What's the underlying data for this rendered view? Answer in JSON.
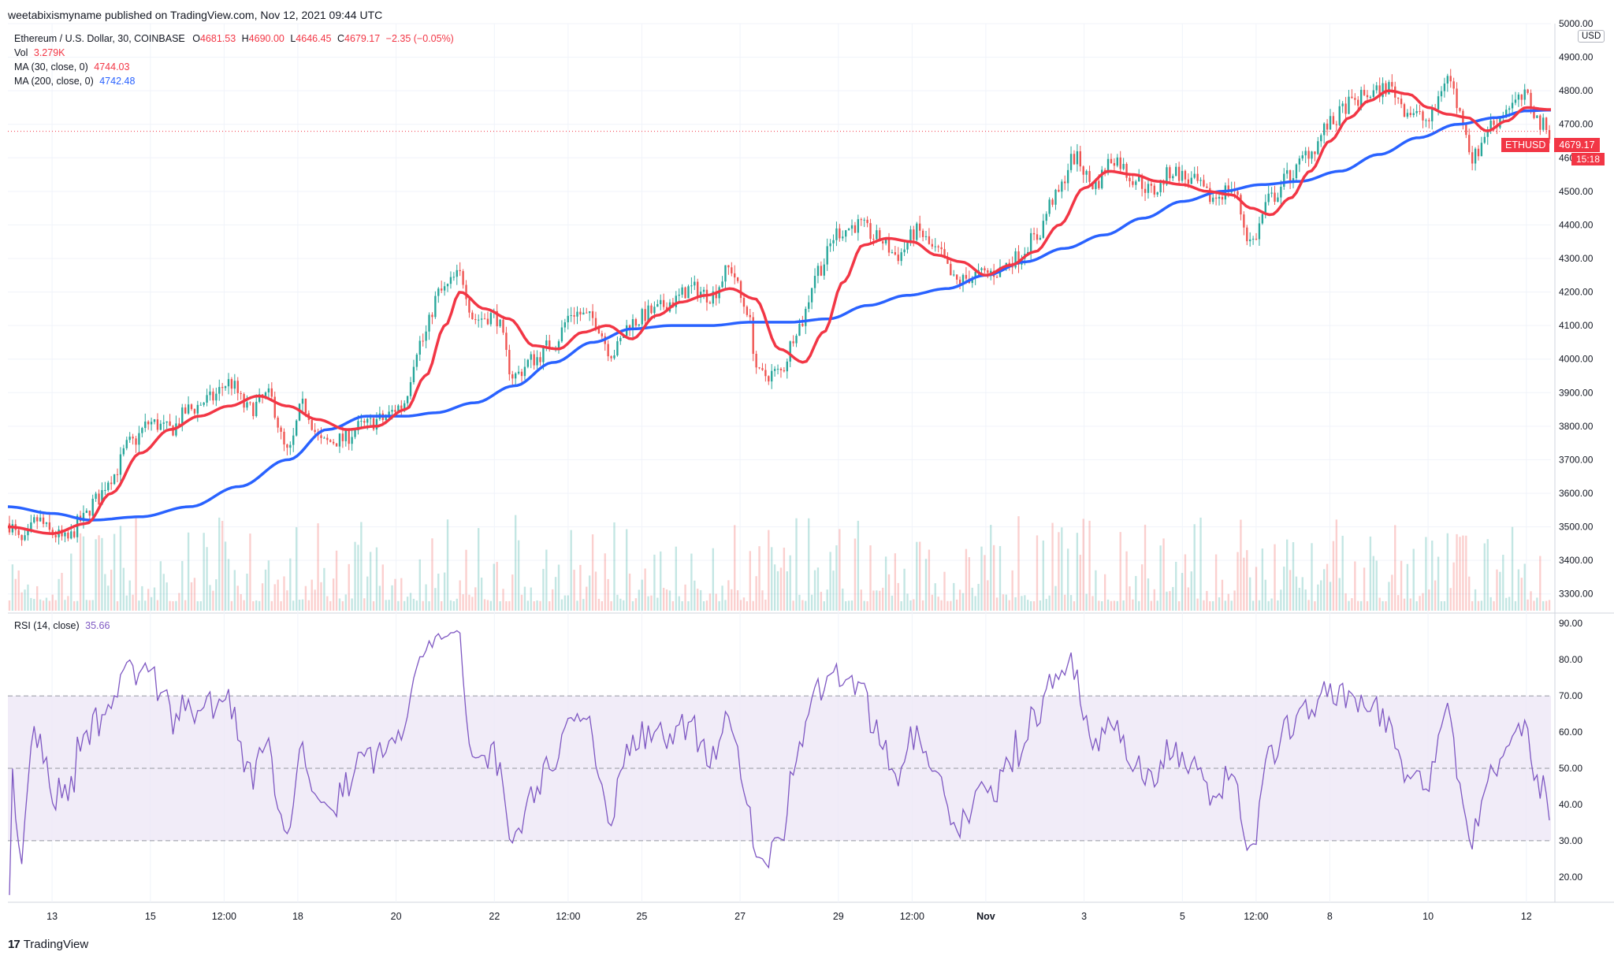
{
  "header": {
    "published": "weetabixismyname published on TradingView.com, Nov 12, 2021 09:44 UTC"
  },
  "legend": {
    "symbol": "Ethereum / U.S. Dollar, 30, COINBASE",
    "ohlc": {
      "o_label": "O",
      "o": "4681.53",
      "h_label": "H",
      "h": "4690.00",
      "l_label": "L",
      "l": "4646.45",
      "c_label": "C",
      "c": "4679.17",
      "change": "−2.35 (−0.05%)"
    },
    "vol_label": "Vol",
    "vol": "3.279K",
    "ma30_label": "MA (30, close, 0)",
    "ma30": "4744.03",
    "ma200_label": "MA (200, close, 0)",
    "ma200": "4742.48"
  },
  "rsi_legend": {
    "label": "RSI (14, close)",
    "value": "35.66"
  },
  "price_tag": {
    "symbol": "ETHUSD",
    "value": "4679.17",
    "countdown": "15:18"
  },
  "currency": "USD",
  "branding": {
    "mark": "17",
    "name": "TradingView"
  },
  "colors": {
    "up": "#26a69a",
    "down": "#ef5350",
    "ma30": "#f23645",
    "ma200": "#2962ff",
    "rsi": "#7e57c2",
    "rsi_band": "#ede7f6",
    "grid": "#f0f3fa"
  },
  "chart_data": [
    {
      "type": "candlestick",
      "title": "Ethereum / U.S. Dollar, 30, COINBASE",
      "ylim": [
        3250,
        5000
      ],
      "y_ticks": [
        "3300.00",
        "3400.00",
        "3500.00",
        "3600.00",
        "3700.00",
        "3800.00",
        "3900.00",
        "4000.00",
        "4100.00",
        "4200.00",
        "4300.00",
        "4400.00",
        "4500.00",
        "4600.00",
        "4700.00",
        "4800.00",
        "4900.00",
        "5000.00"
      ],
      "x_ticks": [
        "13",
        "15",
        "12:00",
        "18",
        "20",
        "22",
        "12:00",
        "25",
        "27",
        "29",
        "12:00",
        "Nov",
        "3",
        "5",
        "12:00",
        "8",
        "10",
        "12"
      ],
      "x_tick_days": [
        13.0,
        15.0,
        16.5,
        18.0,
        20.0,
        22.0,
        23.5,
        25.0,
        27.0,
        29.0,
        30.5,
        32.0,
        34.0,
        36.0,
        37.5,
        39.0,
        41.0,
        43.0
      ],
      "x_range_days": [
        12.1,
        43.5
      ],
      "last_close": 4679.17,
      "price_anchors": [
        [
          12.1,
          3510
        ],
        [
          12.4,
          3450
        ],
        [
          12.7,
          3520
        ],
        [
          13.0,
          3480
        ],
        [
          13.3,
          3460
        ],
        [
          13.6,
          3520
        ],
        [
          13.9,
          3580
        ],
        [
          14.2,
          3650
        ],
        [
          14.6,
          3750
        ],
        [
          15.0,
          3810
        ],
        [
          15.4,
          3790
        ],
        [
          15.8,
          3850
        ],
        [
          16.2,
          3880
        ],
        [
          16.6,
          3930
        ],
        [
          17.0,
          3850
        ],
        [
          17.4,
          3890
        ],
        [
          17.8,
          3720
        ],
        [
          18.1,
          3860
        ],
        [
          18.5,
          3750
        ],
        [
          18.9,
          3760
        ],
        [
          19.3,
          3800
        ],
        [
          19.7,
          3820
        ],
        [
          20.1,
          3860
        ],
        [
          20.5,
          4050
        ],
        [
          20.9,
          4200
        ],
        [
          21.3,
          4250
        ],
        [
          21.6,
          4120
        ],
        [
          22.0,
          4130
        ],
        [
          22.4,
          3950
        ],
        [
          22.8,
          4000
        ],
        [
          23.2,
          4050
        ],
        [
          23.6,
          4140
        ],
        [
          24.0,
          4120
        ],
        [
          24.4,
          4020
        ],
        [
          24.8,
          4110
        ],
        [
          25.2,
          4140
        ],
        [
          25.6,
          4170
        ],
        [
          26.0,
          4210
        ],
        [
          26.4,
          4190
        ],
        [
          26.8,
          4270
        ],
        [
          27.1,
          4160
        ],
        [
          27.4,
          3950
        ],
        [
          27.8,
          3960
        ],
        [
          28.2,
          4100
        ],
        [
          28.6,
          4270
        ],
        [
          29.0,
          4380
        ],
        [
          29.4,
          4400
        ],
        [
          29.8,
          4360
        ],
        [
          30.2,
          4310
        ],
        [
          30.6,
          4380
        ],
        [
          31.0,
          4320
        ],
        [
          31.4,
          4230
        ],
        [
          31.8,
          4250
        ],
        [
          32.2,
          4260
        ],
        [
          32.6,
          4300
        ],
        [
          33.0,
          4360
        ],
        [
          33.4,
          4480
        ],
        [
          33.8,
          4600
        ],
        [
          34.2,
          4520
        ],
        [
          34.6,
          4600
        ],
        [
          35.0,
          4540
        ],
        [
          35.4,
          4500
        ],
        [
          35.8,
          4560
        ],
        [
          36.2,
          4530
        ],
        [
          36.6,
          4480
        ],
        [
          37.0,
          4510
        ],
        [
          37.4,
          4350
        ],
        [
          37.8,
          4480
        ],
        [
          38.2,
          4550
        ],
        [
          38.6,
          4620
        ],
        [
          39.0,
          4700
        ],
        [
          39.4,
          4760
        ],
        [
          39.8,
          4790
        ],
        [
          40.2,
          4810
        ],
        [
          40.6,
          4740
        ],
        [
          41.0,
          4710
        ],
        [
          41.4,
          4840
        ],
        [
          41.7,
          4720
        ],
        [
          41.9,
          4600
        ],
        [
          42.3,
          4700
        ],
        [
          42.7,
          4760
        ],
        [
          43.0,
          4780
        ],
        [
          43.3,
          4700
        ],
        [
          43.45,
          4679
        ]
      ],
      "ma30_anchors": [
        [
          12.1,
          3500
        ],
        [
          13.0,
          3480
        ],
        [
          13.7,
          3510
        ],
        [
          14.2,
          3600
        ],
        [
          14.8,
          3720
        ],
        [
          15.4,
          3790
        ],
        [
          16.0,
          3830
        ],
        [
          16.6,
          3860
        ],
        [
          17.2,
          3890
        ],
        [
          17.8,
          3860
        ],
        [
          18.4,
          3820
        ],
        [
          19.0,
          3790
        ],
        [
          19.6,
          3800
        ],
        [
          20.2,
          3850
        ],
        [
          20.6,
          3950
        ],
        [
          21.0,
          4100
        ],
        [
          21.3,
          4200
        ],
        [
          21.8,
          4150
        ],
        [
          22.3,
          4120
        ],
        [
          22.8,
          4040
        ],
        [
          23.3,
          4030
        ],
        [
          23.8,
          4080
        ],
        [
          24.3,
          4100
        ],
        [
          24.8,
          4060
        ],
        [
          25.3,
          4130
        ],
        [
          25.8,
          4170
        ],
        [
          26.3,
          4190
        ],
        [
          26.8,
          4210
        ],
        [
          27.3,
          4180
        ],
        [
          27.8,
          4030
        ],
        [
          28.3,
          3990
        ],
        [
          28.7,
          4080
        ],
        [
          29.1,
          4230
        ],
        [
          29.5,
          4340
        ],
        [
          30.0,
          4360
        ],
        [
          30.5,
          4350
        ],
        [
          31.0,
          4310
        ],
        [
          31.5,
          4290
        ],
        [
          32.0,
          4250
        ],
        [
          32.5,
          4280
        ],
        [
          33.0,
          4320
        ],
        [
          33.5,
          4400
        ],
        [
          34.0,
          4510
        ],
        [
          34.5,
          4560
        ],
        [
          35.0,
          4550
        ],
        [
          35.5,
          4530
        ],
        [
          36.0,
          4520
        ],
        [
          36.5,
          4500
        ],
        [
          37.0,
          4490
        ],
        [
          37.4,
          4450
        ],
        [
          37.8,
          4430
        ],
        [
          38.2,
          4480
        ],
        [
          38.6,
          4560
        ],
        [
          39.0,
          4650
        ],
        [
          39.4,
          4720
        ],
        [
          39.8,
          4770
        ],
        [
          40.2,
          4800
        ],
        [
          40.6,
          4790
        ],
        [
          41.0,
          4750
        ],
        [
          41.4,
          4730
        ],
        [
          41.8,
          4720
        ],
        [
          42.2,
          4680
        ],
        [
          42.6,
          4710
        ],
        [
          43.0,
          4750
        ],
        [
          43.45,
          4744
        ]
      ],
      "ma200_anchors": [
        [
          12.1,
          3560
        ],
        [
          13.0,
          3540
        ],
        [
          13.8,
          3520
        ],
        [
          14.8,
          3530
        ],
        [
          15.8,
          3560
        ],
        [
          16.8,
          3620
        ],
        [
          17.8,
          3700
        ],
        [
          18.6,
          3790
        ],
        [
          19.4,
          3830
        ],
        [
          20.2,
          3830
        ],
        [
          20.8,
          3840
        ],
        [
          21.6,
          3870
        ],
        [
          22.4,
          3920
        ],
        [
          23.2,
          3990
        ],
        [
          24.0,
          4050
        ],
        [
          24.8,
          4090
        ],
        [
          25.6,
          4100
        ],
        [
          26.4,
          4100
        ],
        [
          27.2,
          4110
        ],
        [
          28.0,
          4110
        ],
        [
          28.8,
          4120
        ],
        [
          29.6,
          4160
        ],
        [
          30.4,
          4190
        ],
        [
          31.2,
          4210
        ],
        [
          32.0,
          4250
        ],
        [
          32.8,
          4290
        ],
        [
          33.6,
          4330
        ],
        [
          34.4,
          4370
        ],
        [
          35.2,
          4420
        ],
        [
          36.0,
          4470
        ],
        [
          36.8,
          4500
        ],
        [
          37.6,
          4520
        ],
        [
          38.4,
          4530
        ],
        [
          39.2,
          4560
        ],
        [
          40.0,
          4610
        ],
        [
          40.8,
          4660
        ],
        [
          41.6,
          4700
        ],
        [
          42.4,
          4720
        ],
        [
          43.0,
          4740
        ],
        [
          43.45,
          4742
        ]
      ]
    },
    {
      "type": "line",
      "title": "RSI (14, close)",
      "ylim": [
        13,
        92
      ],
      "y_ticks": [
        "20.00",
        "30.00",
        "40.00",
        "50.00",
        "60.00",
        "70.00",
        "80.00",
        "90.00"
      ],
      "band": [
        30,
        70
      ],
      "midline": 50,
      "last_value": 35.66
    }
  ]
}
